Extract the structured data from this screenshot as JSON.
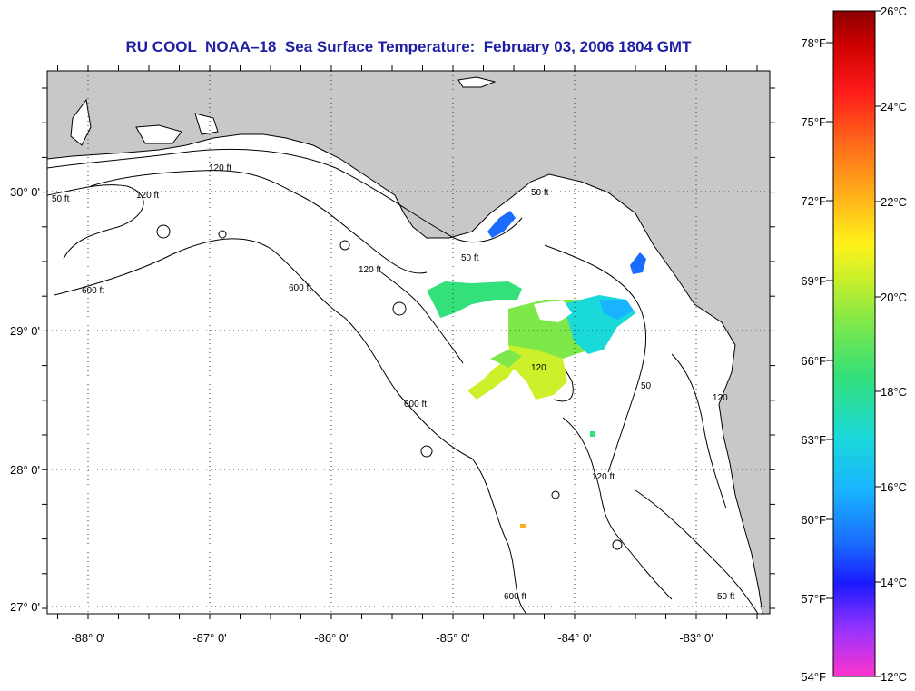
{
  "title": "RU COOL  NOAA–18  Sea Surface Temperature:  February 03, 2006 1804 GMT",
  "map": {
    "lon_labels": [
      "-88° 0'",
      "-87° 0'",
      "-86° 0'",
      "-85° 0'",
      "-84° 0'",
      "-83° 0'"
    ],
    "lat_labels": [
      "30° 0'",
      "29° 0'",
      "28° 0'",
      "27° 0'"
    ],
    "land_color": "#c8c8c8",
    "ocean_color": "#ffffff",
    "contour_labels": [
      "120 ft",
      "600 ft",
      "50 ft",
      "120 ft",
      "600 ft",
      "120",
      "50",
      "600 ft",
      "120 ft",
      "50 ft",
      "120",
      "600 ft",
      "50 ft",
      "120 ft",
      "50 ft"
    ]
  },
  "colorbar": {
    "fahrenheit_labels": [
      "78°F",
      "75°F",
      "72°F",
      "69°F",
      "66°F",
      "63°F",
      "60°F",
      "57°F",
      "54°F"
    ],
    "celsius_labels": [
      "26°C",
      "24°C",
      "22°C",
      "20°C",
      "18°C",
      "16°C",
      "14°C",
      "12°C"
    ],
    "range_celsius": [
      12,
      26
    ],
    "colors": [
      "#ff33cc",
      "#9933ff",
      "#1a1aff",
      "#1a6cff",
      "#19b4ff",
      "#1ad9d9",
      "#33e07a",
      "#7ee84a",
      "#ccf02a",
      "#fff21a",
      "#ffb31a",
      "#ff6a1a",
      "#ff1a1a",
      "#cc0000",
      "#8b0000"
    ]
  }
}
